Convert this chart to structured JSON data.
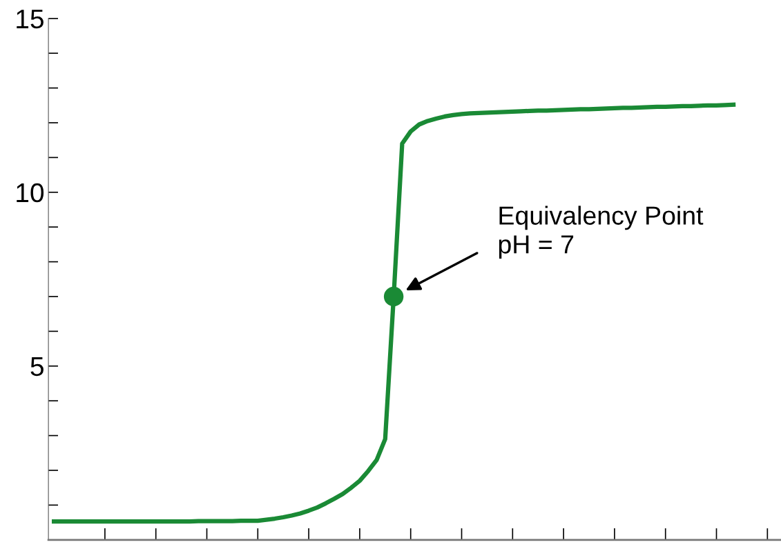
{
  "chart_data": {
    "type": "line",
    "categories": [
      null,
      null,
      null,
      null,
      null,
      null,
      null,
      null,
      null,
      null,
      null,
      null,
      null,
      null,
      null,
      null,
      null,
      null,
      null,
      null,
      null,
      null,
      null,
      null,
      null,
      null,
      null,
      null,
      null,
      null,
      null,
      null,
      null,
      null,
      null,
      null,
      null,
      null,
      null,
      null,
      null,
      null,
      null,
      null,
      null,
      null,
      null,
      null,
      null,
      null,
      null,
      null,
      null,
      null,
      null,
      null,
      null,
      null,
      null,
      null,
      null,
      null,
      null,
      null,
      null,
      null,
      null,
      null,
      null,
      null,
      null,
      null,
      null,
      null,
      null,
      null,
      null,
      null,
      null,
      null,
      null
    ],
    "series": [
      {
        "color": "#1a8a35",
        "values": [
          0.53,
          0.53,
          0.53,
          0.53,
          0.53,
          0.53,
          0.53,
          0.53,
          0.53,
          0.53,
          0.53,
          0.53,
          0.53,
          0.53,
          0.53,
          0.53,
          0.53,
          0.54,
          0.54,
          0.54,
          0.54,
          0.54,
          0.55,
          0.55,
          0.55,
          0.58,
          0.61,
          0.65,
          0.7,
          0.76,
          0.84,
          0.93,
          1.05,
          1.18,
          1.32,
          1.5,
          1.7,
          1.98,
          2.3,
          2.9,
          7,
          11.4,
          11.75,
          11.95,
          12.05,
          12.12,
          12.18,
          12.22,
          12.25,
          12.27,
          12.28,
          12.29,
          12.3,
          12.31,
          12.32,
          12.33,
          12.34,
          12.35,
          12.35,
          12.36,
          12.37,
          12.38,
          12.39,
          12.39,
          12.4,
          12.41,
          12.42,
          12.43,
          12.43,
          12.44,
          12.45,
          12.46,
          12.46,
          12.47,
          12.48,
          12.48,
          12.49,
          12.5,
          12.5,
          12.51,
          12.52
        ]
      },
      {
        "type": "scatter",
        "color": "#1a8a35",
        "marker": "circle",
        "values": [
          null,
          null,
          null,
          null,
          null,
          null,
          null,
          null,
          null,
          null,
          null,
          null,
          null,
          null,
          null,
          null,
          null,
          null,
          null,
          null,
          null,
          null,
          null,
          null,
          null,
          null,
          null,
          null,
          null,
          null,
          null,
          null,
          null,
          null,
          null,
          null,
          null,
          null,
          null,
          null,
          7,
          null,
          null,
          null,
          null,
          null,
          null,
          null,
          null,
          null,
          null,
          null,
          null,
          null,
          null,
          null,
          null,
          null,
          null,
          null,
          null,
          null,
          null,
          null,
          null,
          null,
          null,
          null,
          null,
          null,
          null,
          null,
          null,
          null,
          null,
          null,
          null,
          null,
          null,
          null,
          null
        ]
      }
    ],
    "ylim": [
      0,
      15
    ],
    "yticks": [
      {
        "value": 1,
        "label": null
      },
      {
        "value": 2,
        "label": null
      },
      {
        "value": 3,
        "label": null
      },
      {
        "value": 4,
        "label": null
      },
      5,
      {
        "value": 6,
        "label": null
      },
      {
        "value": 7,
        "label": null
      },
      {
        "value": 8,
        "label": null
      },
      {
        "value": 9,
        "label": null
      },
      10,
      {
        "value": 11,
        "label": null
      },
      {
        "value": 12,
        "label": null
      },
      {
        "value": 13,
        "label": null
      },
      {
        "value": 14,
        "label": null
      },
      15
    ],
    "annotations": [
      "Equivalency Point\npH = 7"
    ],
    "grid": false,
    "legend": false
  }
}
